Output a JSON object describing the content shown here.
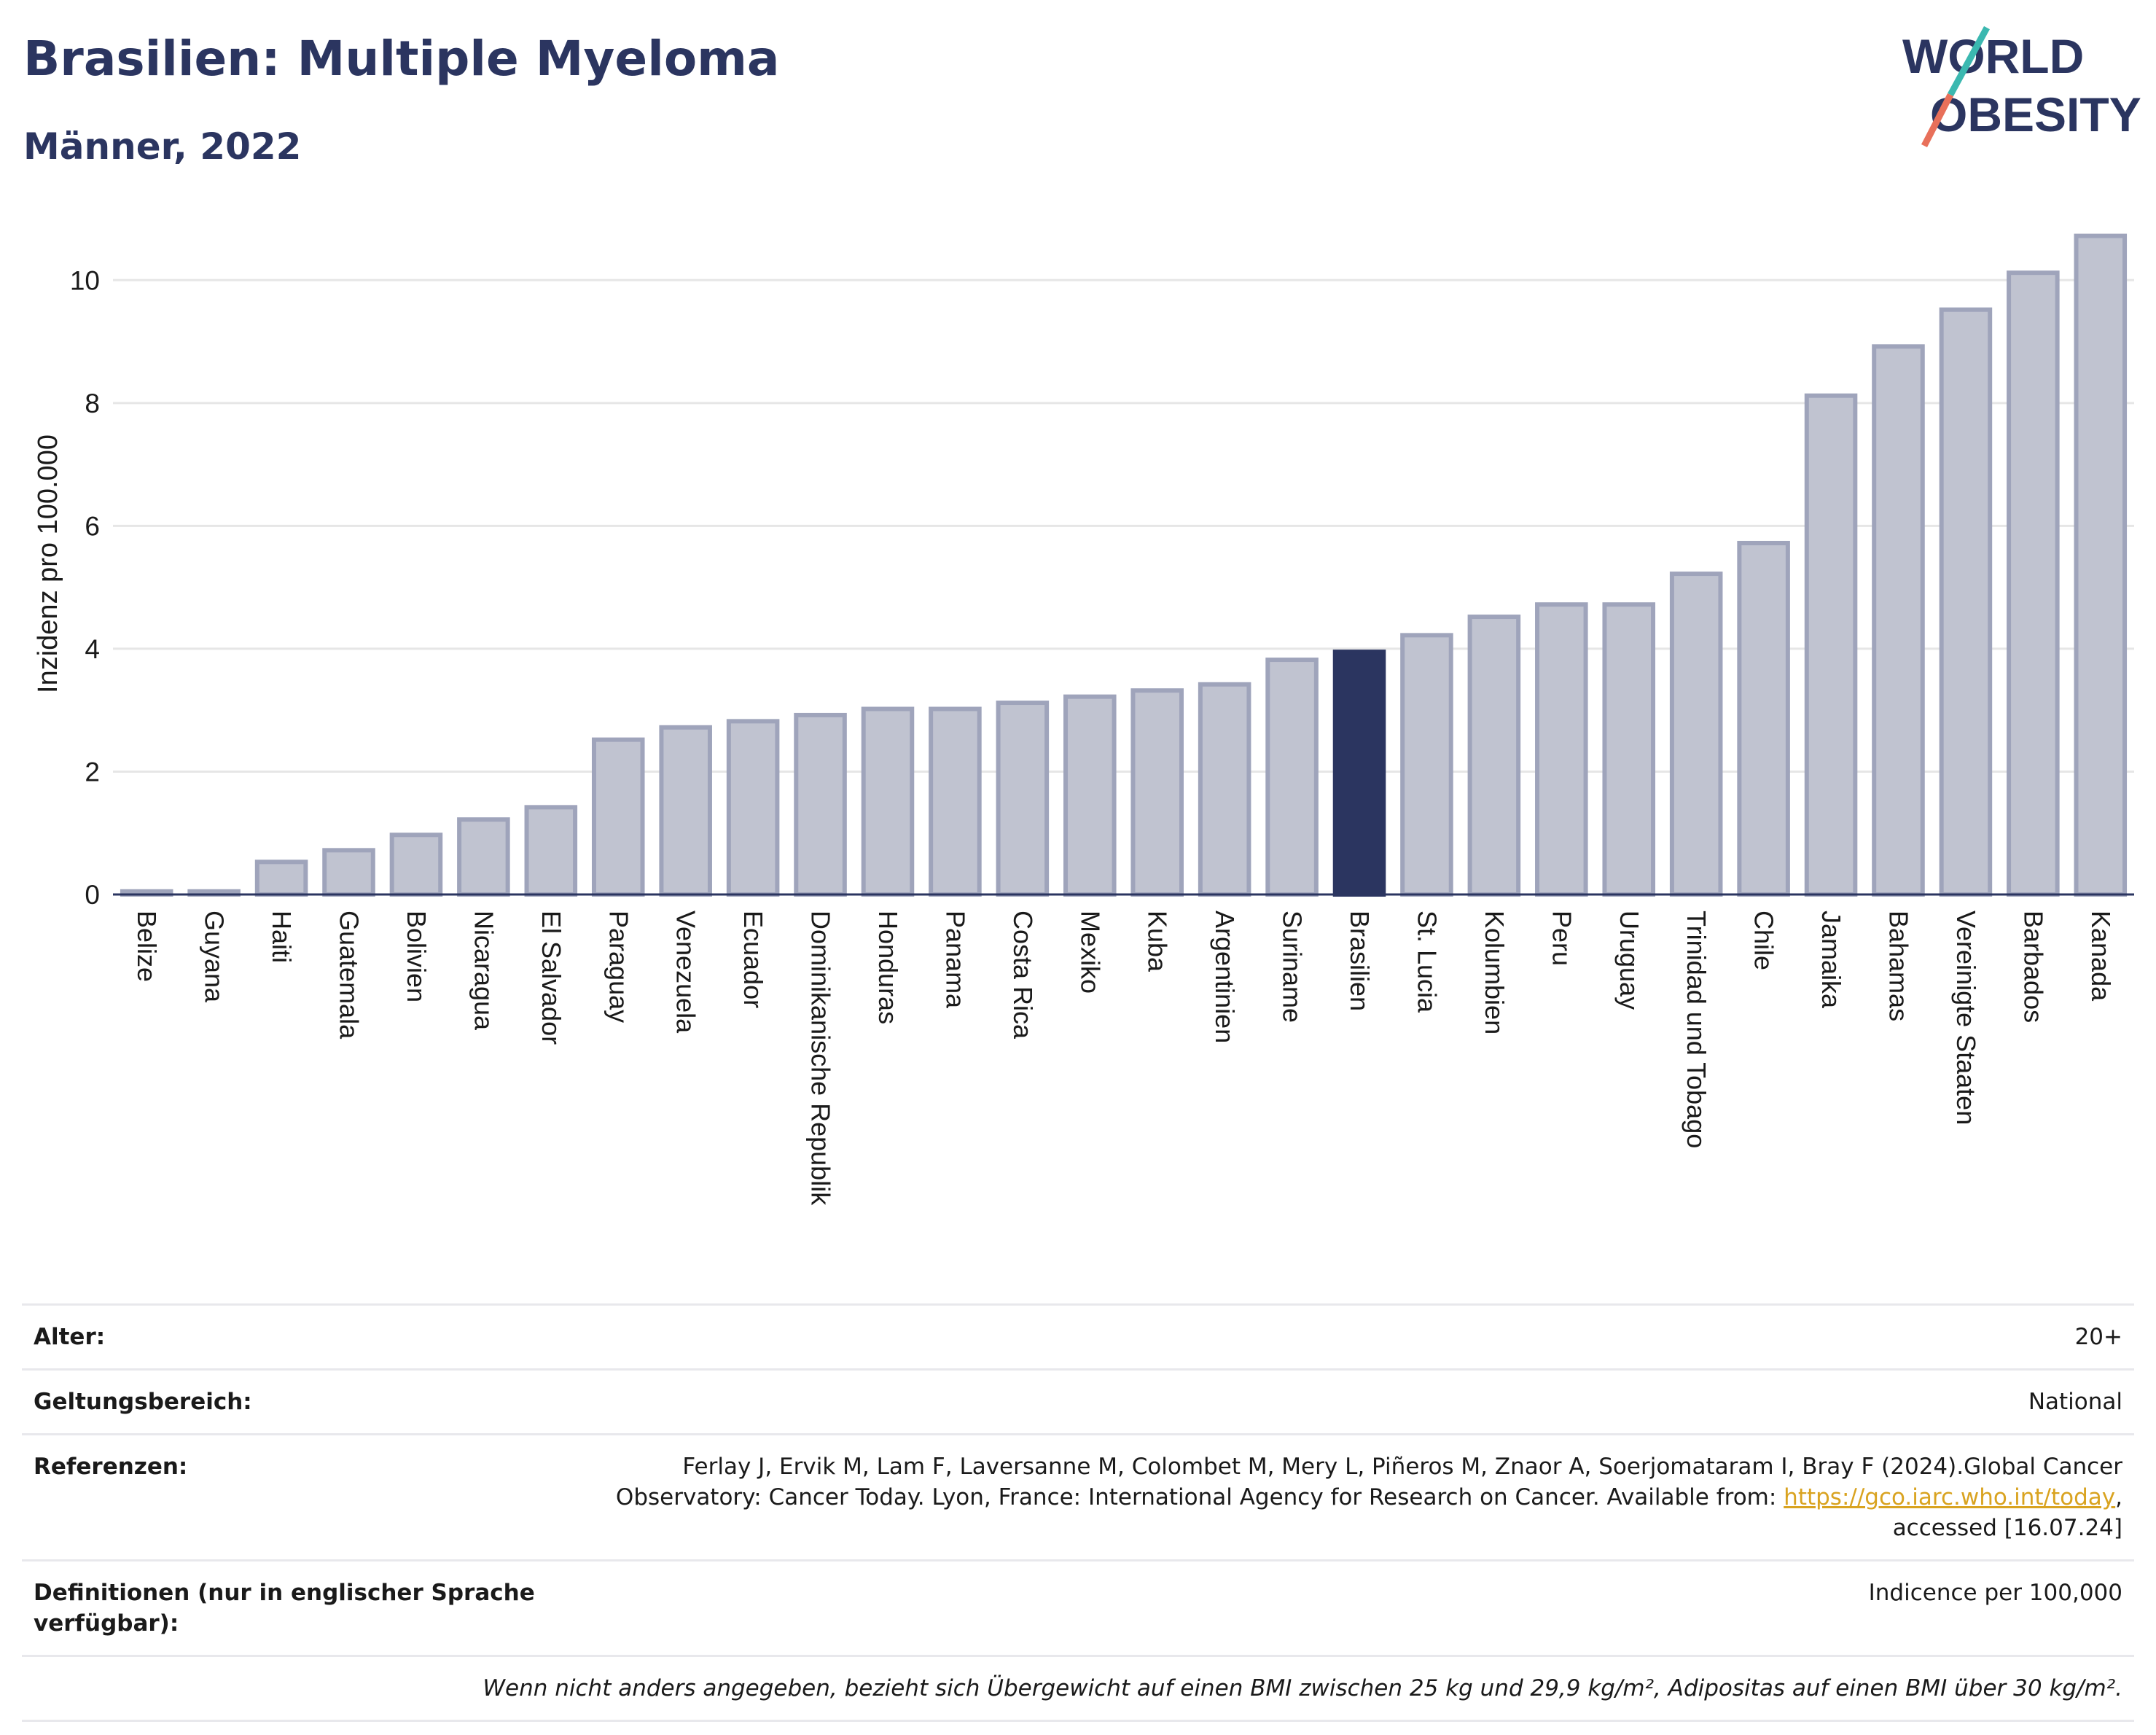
{
  "header": {
    "title": "Brasilien: Multiple Myeloma",
    "subtitle": "Männer, 2022",
    "logo_line1": "WORLD",
    "logo_line2": "OBESITY"
  },
  "colors": {
    "title": "#2b3560",
    "bar": "#c0c3d0",
    "bar_border": "#9fa4bb",
    "highlight": "#2b3560",
    "grid": "#e6e6e6",
    "link": "#d9a320"
  },
  "chart_data": {
    "type": "bar",
    "ylabel": "Inzidenz pro 100.000",
    "ylim": [
      0,
      11
    ],
    "yticks": [
      0,
      2,
      4,
      6,
      8,
      10
    ],
    "grid": true,
    "highlight": "Brasilien",
    "categories": [
      "Belize",
      "Guyana",
      "Haiti",
      "Guatemala",
      "Bolivien",
      "Nicaragua",
      "El Salvador",
      "Paraguay",
      "Venezuela",
      "Ecuador",
      "Dominikanische Republik",
      "Honduras",
      "Panama",
      "Costa Rica",
      "Mexiko",
      "Kuba",
      "Argentinien",
      "Suriname",
      "Brasilien",
      "St. Lucia",
      "Kolumbien",
      "Peru",
      "Uruguay",
      "Trinidad und Tobago",
      "Chile",
      "Jamaika",
      "Bahamas",
      "Vereinigte Staaten",
      "Barbados",
      "Kanada"
    ],
    "values": [
      0.05,
      0.05,
      0.53,
      0.72,
      0.97,
      1.22,
      1.42,
      2.52,
      2.72,
      2.82,
      2.92,
      3.02,
      3.02,
      3.12,
      3.22,
      3.32,
      3.42,
      3.82,
      3.95,
      4.22,
      4.52,
      4.72,
      4.72,
      5.22,
      5.72,
      8.12,
      8.92,
      9.52,
      10.12,
      10.72
    ]
  },
  "info": {
    "rows": [
      {
        "label": "Alter:",
        "value": "20+"
      },
      {
        "label": "Geltungsbereich:",
        "value": "National"
      },
      {
        "label": "Referenzen:",
        "value_part1": "Ferlay J, Ervik M, Lam F, Laversanne M, Colombet M, Mery L, Piñeros M, Znaor A, Soerjomataram I, Bray F (2024).Global Cancer Observatory: Cancer Today. Lyon, France: International Agency for Research on Cancer. Available from: ",
        "link": "https://gco.iarc.who.int/today",
        "value_part2": ", accessed [16.07.24]"
      },
      {
        "label": "Definitionen (nur in englischer Sprache verfügbar):",
        "value": "Indicence per 100,000"
      }
    ],
    "note": "Wenn nicht anders angegeben, bezieht sich Übergewicht auf einen BMI zwischen 25 kg und 29,9 kg/m², Adipositas auf einen BMI über 30 kg/m²."
  }
}
